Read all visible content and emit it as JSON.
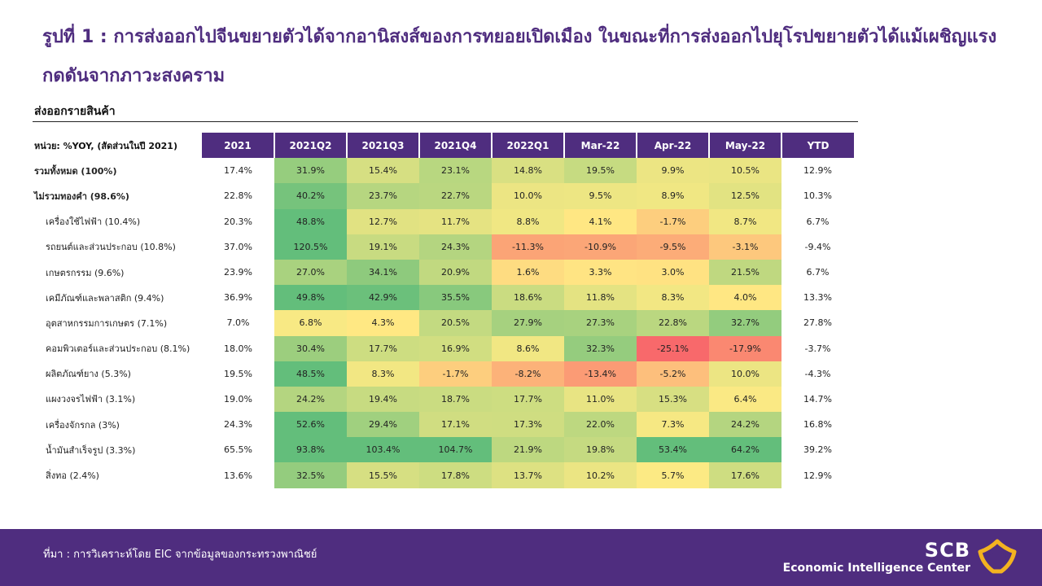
{
  "title": "รูปที่ 1 : การส่งออกไปจีนขยายตัวได้จากอานิสงส์ของการทยอยเปิดเมือง ในขณะที่การส่งออกไปยุโรปขยายตัวได้แม้เผชิญแรงกดดันจากภาวะสงคราม",
  "subtitle": "ส่งออกรายสินค้า",
  "unit_label": "หน่วย: %YOY, (สัดส่วนในปี 2021)",
  "columns": [
    "2021",
    "2021Q2",
    "2021Q3",
    "2021Q4",
    "2022Q1",
    "Mar-22",
    "Apr-22",
    "May-22",
    "YTD"
  ],
  "rows": [
    {
      "label": "รวมทั้งหมด (100%)",
      "bold": true,
      "values": [
        "17.4%",
        "31.9%",
        "15.4%",
        "23.1%",
        "14.8%",
        "19.5%",
        "9.9%",
        "10.5%",
        "12.9%"
      ]
    },
    {
      "label": "ไม่รวมทองคำ (98.6%)",
      "bold": true,
      "values": [
        "22.8%",
        "40.2%",
        "23.7%",
        "22.7%",
        "10.0%",
        "9.5%",
        "8.9%",
        "12.5%",
        "10.3%"
      ]
    },
    {
      "label": "เครื่องใช้ไฟฟ้า (10.4%)",
      "bold": false,
      "values": [
        "20.3%",
        "48.8%",
        "12.7%",
        "11.7%",
        "8.8%",
        "4.1%",
        "-1.7%",
        "8.7%",
        "6.7%"
      ]
    },
    {
      "label": "รถยนต์และส่วนประกอบ (10.8%)",
      "bold": false,
      "values": [
        "37.0%",
        "120.5%",
        "19.1%",
        "24.3%",
        "-11.3%",
        "-10.9%",
        "-9.5%",
        "-3.1%",
        "-9.4%"
      ]
    },
    {
      "label": "เกษตรกรรม (9.6%)",
      "bold": false,
      "values": [
        "23.9%",
        "27.0%",
        "34.1%",
        "20.9%",
        "1.6%",
        "3.3%",
        "3.0%",
        "21.5%",
        "6.7%"
      ]
    },
    {
      "label": "เคมีภัณฑ์และพลาสติก (9.4%)",
      "bold": false,
      "values": [
        "36.9%",
        "49.8%",
        "42.9%",
        "35.5%",
        "18.6%",
        "11.8%",
        "8.3%",
        "4.0%",
        "13.3%"
      ]
    },
    {
      "label": "อุตสาหกรรมการเกษตร (7.1%)",
      "bold": false,
      "values": [
        "7.0%",
        "6.8%",
        "4.3%",
        "20.5%",
        "27.9%",
        "27.3%",
        "22.8%",
        "32.7%",
        "27.8%"
      ]
    },
    {
      "label": "คอมพิวเตอร์และส่วนประกอบ (8.1%)",
      "bold": false,
      "values": [
        "18.0%",
        "30.4%",
        "17.7%",
        "16.9%",
        "8.6%",
        "32.3%",
        "-25.1%",
        "-17.9%",
        "-3.7%"
      ]
    },
    {
      "label": "ผลิตภัณฑ์ยาง (5.3%)",
      "bold": false,
      "values": [
        "19.5%",
        "48.5%",
        "8.3%",
        "-1.7%",
        "-8.2%",
        "-13.4%",
        "-5.2%",
        "10.0%",
        "-4.3%"
      ]
    },
    {
      "label": "แผงวงจรไฟฟ้า (3.1%)",
      "bold": false,
      "values": [
        "19.0%",
        "24.2%",
        "19.4%",
        "18.7%",
        "17.7%",
        "11.0%",
        "15.3%",
        "6.4%",
        "14.7%"
      ]
    },
    {
      "label": "เครื่องจักรกล (3%)",
      "bold": false,
      "values": [
        "24.3%",
        "52.6%",
        "29.4%",
        "17.1%",
        "17.3%",
        "22.0%",
        "7.3%",
        "24.2%",
        "16.8%"
      ]
    },
    {
      "label": "น้ำมันสำเร็จรูป (3.3%)",
      "bold": false,
      "values": [
        "65.5%",
        "93.8%",
        "103.4%",
        "104.7%",
        "21.9%",
        "19.8%",
        "53.4%",
        "64.2%",
        "39.2%"
      ]
    },
    {
      "label": "สิ่งทอ (2.4%)",
      "bold": false,
      "values": [
        "13.6%",
        "32.5%",
        "15.5%",
        "17.8%",
        "13.7%",
        "10.2%",
        "5.7%",
        "17.6%",
        "12.9%"
      ]
    }
  ],
  "footer": {
    "source": "ที่มา : การวิเคราะห์โดย EIC จากข้อมูลของกระทรวงพาณิชย์",
    "brand_name": "SCB",
    "brand_sub": "Economic Intelligence Center"
  },
  "colors": {
    "brand_purple": "#4f2d7f",
    "scale_red": "#f8696b",
    "scale_yellow": "#ffeb84",
    "scale_green": "#63be7b",
    "logo_gold": "#f3b320"
  },
  "icons": {
    "logo": "scb-logo-icon"
  }
}
